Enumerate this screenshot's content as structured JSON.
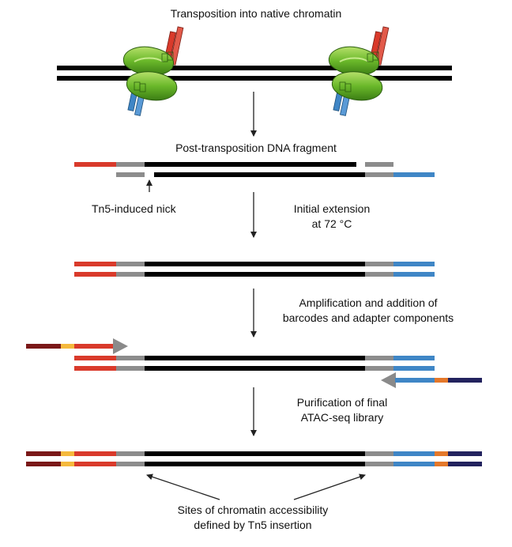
{
  "labels": {
    "transposition": "Transposition into native chromatin",
    "post_transposition": "Post-transposition DNA fragment",
    "nick": "Tn5-induced nick",
    "extension_line1": "Initial extension",
    "extension_line2": "at 72 °C",
    "amplification_line1": "Amplification and addition of",
    "amplification_line2": "barcodes and adapter components",
    "purification_line1": "Purification of final",
    "purification_line2": "ATAC-seq library",
    "sites_line1": "Sites of chromatin accessibility",
    "sites_line2": "defined by Tn5 insertion"
  },
  "colors": {
    "dna": "#000000",
    "adapter_red": "#d93a2b",
    "adapter_blue": "#3f86c6",
    "mosaic_grey": "#8c8c8c",
    "primer_darkred": "#7a1818",
    "barcode_yellow": "#f5b93c",
    "barcode_orange": "#e4782a",
    "primer_navy": "#23235e",
    "tn5_green": "#6ab82a",
    "arrow": "#222222",
    "primer_arrowhead": "#8a8a8a"
  }
}
